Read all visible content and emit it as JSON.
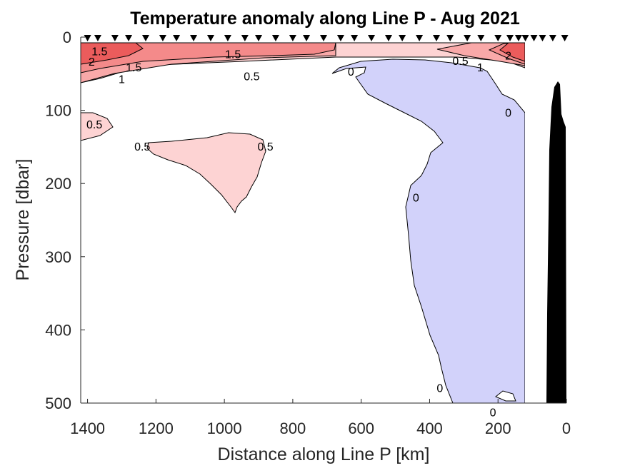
{
  "chart_data": {
    "type": "contour",
    "title": "Temperature anomaly along Line P - Aug 2021",
    "xlabel": "Distance along Line P [km]",
    "ylabel": "Pressure [dbar]",
    "xlim": [
      1420,
      0
    ],
    "ylim": [
      0,
      500
    ],
    "x_reversed": true,
    "y_reversed": true,
    "xticks": [
      1400,
      1200,
      1000,
      800,
      600,
      400,
      200,
      0
    ],
    "yticks": [
      0,
      100,
      200,
      300,
      400,
      500
    ],
    "contour_levels": [
      -0.5,
      0,
      0.5,
      1,
      1.5,
      2
    ],
    "colors": {
      "anomaly_2": "#eb5c5c",
      "anomaly_1_5": "#f48a8a",
      "anomaly_1": "#f9a9a9",
      "anomaly_0_5": "#fdd3d3",
      "anomaly_neg_0_5": "#d2d2fa",
      "background": "#ffffff",
      "topography": "#000000"
    },
    "station_markers_km": [
      1400,
      1370,
      1320,
      1280,
      1230,
      1180,
      1140,
      1090,
      1040,
      990,
      940,
      900,
      850,
      800,
      760,
      710,
      660,
      620,
      570,
      520,
      480,
      430,
      380,
      340,
      290,
      250,
      200,
      165,
      140,
      120,
      95,
      70,
      40,
      5
    ],
    "regions": [
      {
        "level": "0.5",
        "description": "warm surface layer across section"
      },
      {
        "level": "1",
        "description": "warm core near surface"
      },
      {
        "level": "1.5",
        "description": "surface core"
      },
      {
        "level": "2",
        "description": "offshore and coastal surface maxima"
      },
      {
        "level": "0.5",
        "description": "subsurface warm blob near 1000 km, 150-240 dbar"
      },
      {
        "level": "-0.5",
        "description": "cool anomaly from ~500 km to coast below 40 dbar"
      }
    ],
    "contour_labels": [
      {
        "text": "1.5",
        "x_km": 1365,
        "p_dbar": 20
      },
      {
        "text": "2",
        "x_km": 1388,
        "p_dbar": 34
      },
      {
        "text": "1.5",
        "x_km": 1265,
        "p_dbar": 42
      },
      {
        "text": "1",
        "x_km": 1300,
        "p_dbar": 58
      },
      {
        "text": "1.5",
        "x_km": 975,
        "p_dbar": 24
      },
      {
        "text": "0.5",
        "x_km": 920,
        "p_dbar": 54
      },
      {
        "text": "0",
        "x_km": 630,
        "p_dbar": 48
      },
      {
        "text": "0.5",
        "x_km": 310,
        "p_dbar": 33
      },
      {
        "text": "1",
        "x_km": 252,
        "p_dbar": 42
      },
      {
        "text": "2",
        "x_km": 170,
        "p_dbar": 26
      },
      {
        "text": "0",
        "x_km": 170,
        "p_dbar": 104
      },
      {
        "text": "0.5",
        "x_km": 1380,
        "p_dbar": 120
      },
      {
        "text": "0.5",
        "x_km": 1240,
        "p_dbar": 150
      },
      {
        "text": "0.5",
        "x_km": 880,
        "p_dbar": 150
      },
      {
        "text": "0",
        "x_km": 440,
        "p_dbar": 220
      },
      {
        "text": "0",
        "x_km": 370,
        "p_dbar": 480
      },
      {
        "text": "0",
        "x_km": 215,
        "p_dbar": 513
      }
    ]
  }
}
